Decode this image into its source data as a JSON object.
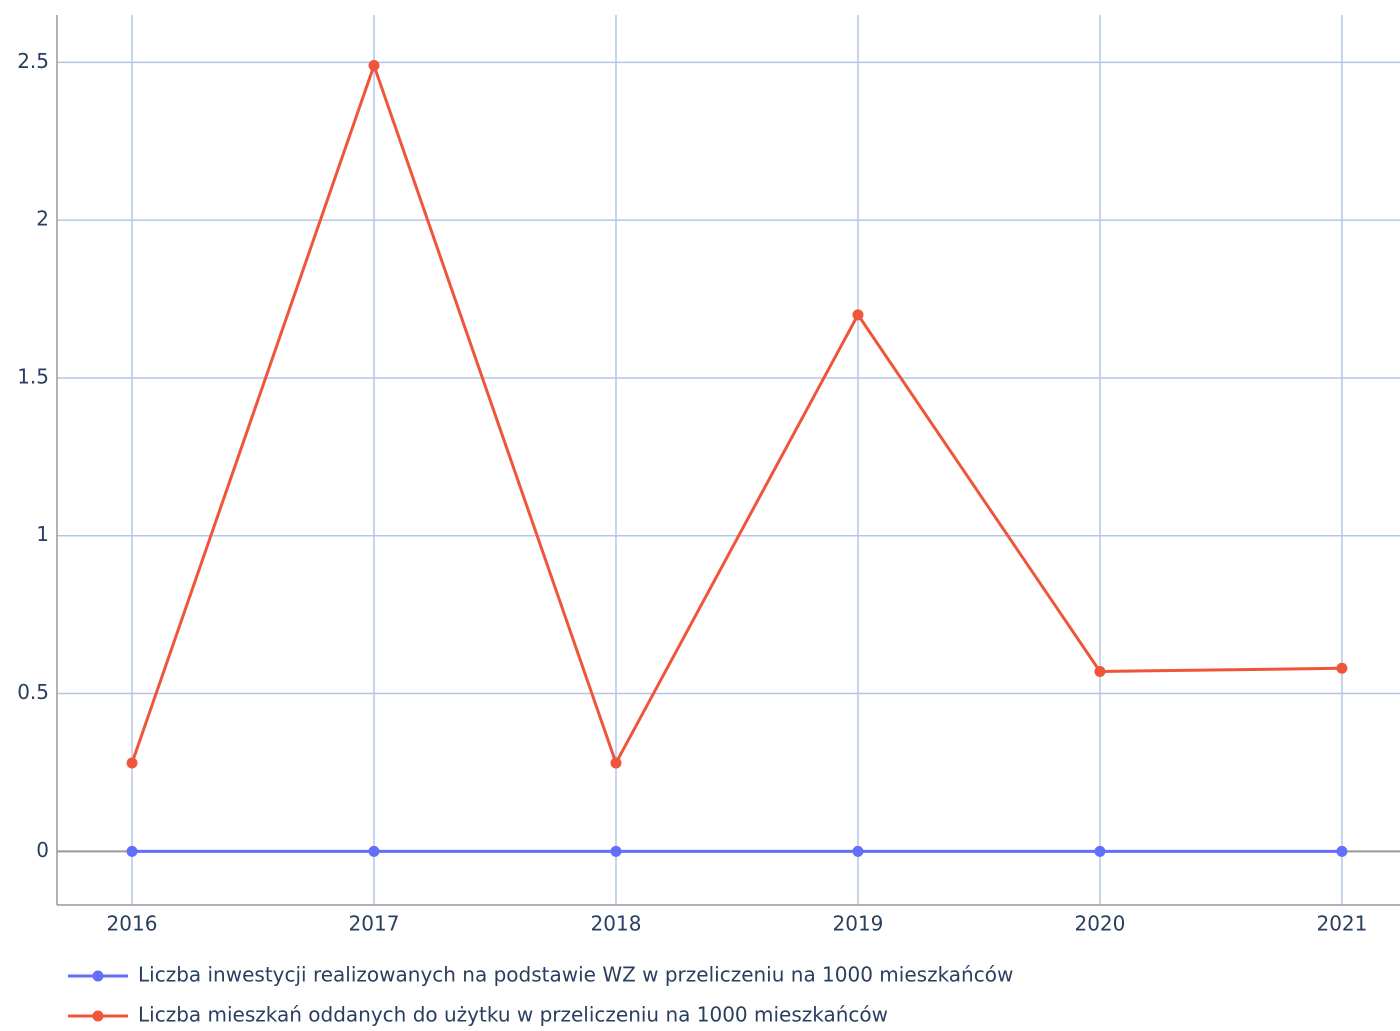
{
  "chart_data": {
    "type": "line",
    "x": [
      2016,
      2017,
      2018,
      2019,
      2020,
      2021
    ],
    "xlim": [
      2015.69,
      2021.24
    ],
    "xticks": [
      2016,
      2017,
      2018,
      2019,
      2020,
      2021
    ],
    "ylim": [
      -0.17,
      2.65
    ],
    "yticks": [
      0,
      0.5,
      1,
      1.5,
      2,
      2.5
    ],
    "grid": true,
    "legend": "bottom",
    "series": [
      {
        "name": "Liczba inwestycji realizowanych na podstawie WZ w przeliczeniu na 1000 mieszkańców",
        "color": "#636efa",
        "values": [
          0,
          0,
          0,
          0,
          0,
          0
        ]
      },
      {
        "name": "Liczba mieszkań oddanych do użytku w przeliczeniu na 1000 mieszkańców",
        "color": "#ef553b",
        "values": [
          0.28,
          2.49,
          0.28,
          1.7,
          0.57,
          0.58
        ]
      }
    ]
  }
}
